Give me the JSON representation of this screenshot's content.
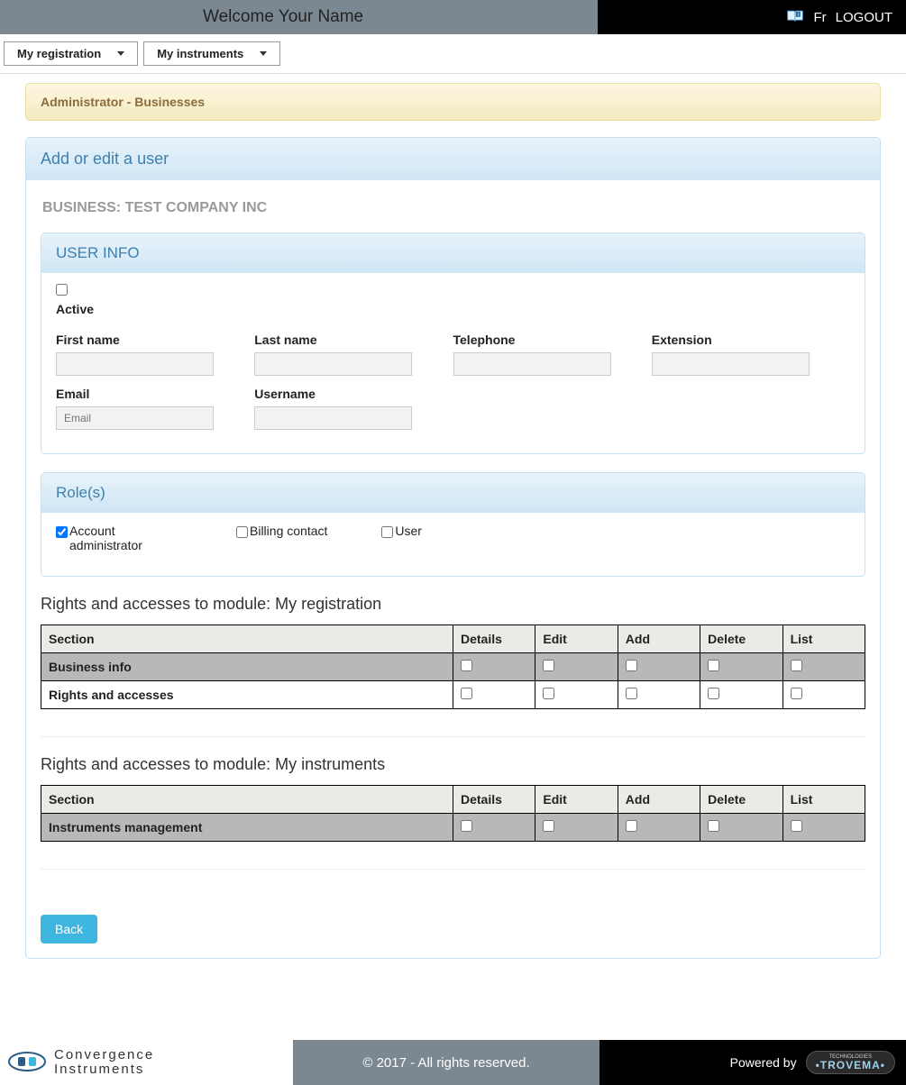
{
  "header": {
    "welcome": "Welcome  Your Name",
    "lang": "Fr",
    "logout": "LOGOUT"
  },
  "menu": {
    "registration": "My registration",
    "instruments": "My instruments"
  },
  "breadcrumb": "Administrator - Businesses",
  "panel_title": "Add or edit a user",
  "business_label": "BUSINESS:",
  "business_name": "TEST COMPANY INC",
  "user_info": {
    "heading": "USER INFO",
    "active_label": "Active",
    "active_checked": false,
    "fields": {
      "first_name": "First name",
      "last_name": "Last name",
      "telephone": "Telephone",
      "extension": "Extension",
      "email": "Email",
      "email_placeholder": "Email",
      "username": "Username"
    }
  },
  "roles": {
    "heading": "Role(s)",
    "items": [
      {
        "label": "Account administrator",
        "checked": true
      },
      {
        "label": "Billing contact",
        "checked": false
      },
      {
        "label": "User",
        "checked": false
      }
    ]
  },
  "rights_tables": [
    {
      "title": "Rights and accesses to module: My registration",
      "columns": [
        "Section",
        "Details",
        "Edit",
        "Add",
        "Delete",
        "List"
      ],
      "rows": [
        {
          "section": "Business info",
          "shaded": true
        },
        {
          "section": "Rights and accesses",
          "shaded": false
        }
      ]
    },
    {
      "title": "Rights and accesses to module: My instruments",
      "columns": [
        "Section",
        "Details",
        "Edit",
        "Add",
        "Delete",
        "List"
      ],
      "rows": [
        {
          "section": "Instruments management",
          "shaded": true
        }
      ]
    }
  ],
  "back_button": "Back",
  "footer": {
    "brand_line1": "Convergence",
    "brand_line2": "Instruments",
    "copyright": "© 2017 - All rights reserved.",
    "powered_by": "Powered by",
    "trovema_top": "TECHNOLOGIES",
    "trovema_name": "•TROVEMA•"
  }
}
